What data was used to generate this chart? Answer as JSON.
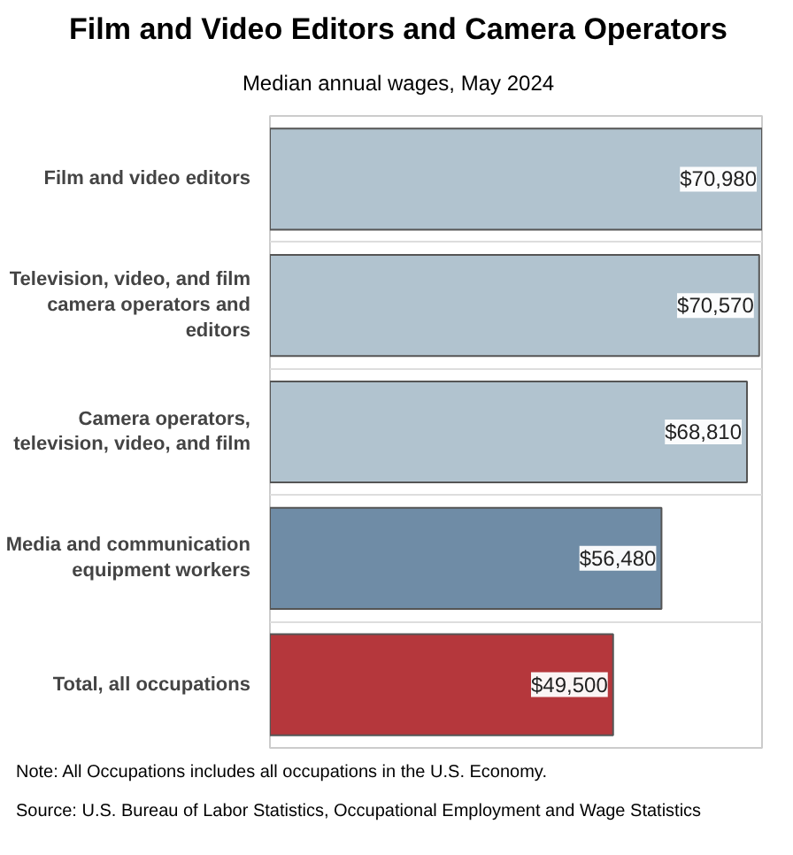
{
  "chart_data": {
    "type": "bar",
    "orientation": "horizontal",
    "title": "Film and Video Editors and Camera Operators",
    "subtitle": "Median annual wages, May 2024",
    "categories": [
      "Film and video editors",
      "Television, video, and film camera operators and editors",
      "Camera operators, television, video, and film",
      "Media and communication equipment workers",
      "Total, all occupations"
    ],
    "values": [
      70980,
      70570,
      68810,
      56480,
      49500
    ],
    "colors": [
      "#b1c3cf",
      "#b1c3cf",
      "#b1c3cf",
      "#6f8ca6",
      "#b5373c"
    ],
    "value_labels": [
      "$70,980",
      "$70,570",
      "$68,810",
      "$56,480",
      "$49,500"
    ],
    "grid": "y",
    "tick_labels": "y",
    "annotations": [
      "Note: All Occupations includes all occupations in the U.S. Economy.",
      "Source: U.S. Bureau of Labor Statistics, Occupational Employment and Wage Statistics"
    ]
  }
}
